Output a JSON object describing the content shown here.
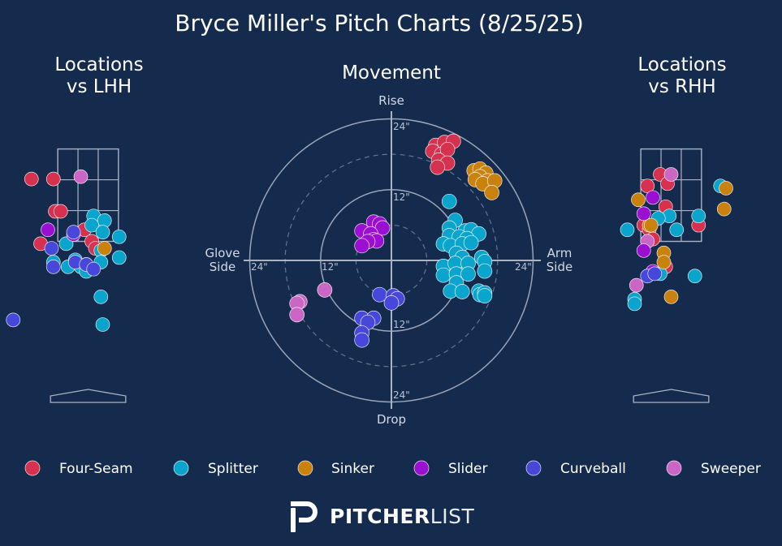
{
  "title": "Bryce Miller's Pitch Charts (8/25/25)",
  "colors": {
    "background": "#152b4d",
    "grid": "#aab3c4",
    "Four-Seam": "#d6324f",
    "Splitter": "#0aa5cc",
    "Sinker": "#c9820d",
    "Slider": "#9a0fd1",
    "Curveball": "#4747dc",
    "Sweeper": "#cc66c4"
  },
  "pitch_types": [
    "Four-Seam",
    "Splitter",
    "Sinker",
    "Slider",
    "Curveball",
    "Sweeper"
  ],
  "brand": {
    "bold": "PITCHER",
    "light": "LIST",
    "logo": "pitcherlist-p-icon"
  },
  "chart_data": [
    {
      "type": "scatter",
      "title": "Locations\nvs LHH",
      "title_lines": [
        "Locations",
        "vs LHH"
      ],
      "xlim": [
        -2.1,
        2.3
      ],
      "ylim": [
        -1.3,
        3.3
      ],
      "strike_zone": {
        "x": [
          -0.83,
          0.83
        ],
        "z": [
          1.5,
          3.5
        ]
      },
      "points": [
        {
          "pitch": "Four-Seam",
          "x": -1.55,
          "y": 2.85
        },
        {
          "pitch": "Four-Seam",
          "x": -0.95,
          "y": 2.85
        },
        {
          "pitch": "Four-Seam",
          "x": -0.9,
          "y": 2.15
        },
        {
          "pitch": "Four-Seam",
          "x": -0.75,
          "y": 2.15
        },
        {
          "pitch": "Four-Seam",
          "x": -0.1,
          "y": 1.75
        },
        {
          "pitch": "Four-Seam",
          "x": -1.3,
          "y": 1.45
        },
        {
          "pitch": "Four-Seam",
          "x": 0.1,
          "y": 1.5
        },
        {
          "pitch": "Four-Seam",
          "x": 0.2,
          "y": 1.35
        },
        {
          "pitch": "Sweeper",
          "x": -0.2,
          "y": 2.9
        },
        {
          "pitch": "Splitter",
          "x": 0.15,
          "y": 2.05
        },
        {
          "pitch": "Splitter",
          "x": 0.45,
          "y": 1.95
        },
        {
          "pitch": "Splitter",
          "x": 0.1,
          "y": 1.85
        },
        {
          "pitch": "Splitter",
          "x": 0.4,
          "y": 1.7
        },
        {
          "pitch": "Splitter",
          "x": 0.85,
          "y": 1.6
        },
        {
          "pitch": "Splitter",
          "x": -0.6,
          "y": 1.45
        },
        {
          "pitch": "Splitter",
          "x": 0.35,
          "y": 1.3
        },
        {
          "pitch": "Splitter",
          "x": 0.85,
          "y": 1.15
        },
        {
          "pitch": "Splitter",
          "x": -0.95,
          "y": 1.05
        },
        {
          "pitch": "Splitter",
          "x": -0.35,
          "y": 1.1
        },
        {
          "pitch": "Splitter",
          "x": -0.55,
          "y": 0.95
        },
        {
          "pitch": "Splitter",
          "x": -0.2,
          "y": 0.95
        },
        {
          "pitch": "Splitter",
          "x": -0.05,
          "y": 1.0
        },
        {
          "pitch": "Splitter",
          "x": 0.35,
          "y": 1.05
        },
        {
          "pitch": "Splitter",
          "x": -0.05,
          "y": 0.85
        },
        {
          "pitch": "Splitter",
          "x": 0.35,
          "y": 0.3
        },
        {
          "pitch": "Splitter",
          "x": 0.4,
          "y": -0.3
        },
        {
          "pitch": "Sinker",
          "x": 0.45,
          "y": 1.35
        },
        {
          "pitch": "Slider",
          "x": -1.1,
          "y": 1.75
        },
        {
          "pitch": "Slider",
          "x": -0.4,
          "y": 1.65
        },
        {
          "pitch": "Curveball",
          "x": -0.4,
          "y": 1.7
        },
        {
          "pitch": "Curveball",
          "x": -1.0,
          "y": 1.35
        },
        {
          "pitch": "Curveball",
          "x": -0.35,
          "y": 1.05
        },
        {
          "pitch": "Curveball",
          "x": -0.05,
          "y": 1.0
        },
        {
          "pitch": "Curveball",
          "x": -0.95,
          "y": 0.95
        },
        {
          "pitch": "Curveball",
          "x": 0.15,
          "y": 0.9
        },
        {
          "pitch": "Curveball",
          "x": -2.05,
          "y": -0.2
        }
      ]
    },
    {
      "type": "scatter",
      "title": "Movement",
      "axis_labels": {
        "top": "Rise",
        "bottom": "Drop",
        "left": "Glove\nSide",
        "right": "Arm\nSide"
      },
      "axis_labels_lines": {
        "top": [
          "Rise"
        ],
        "bottom": [
          "Drop"
        ],
        "left": [
          "Glove",
          "Side"
        ],
        "right": [
          "Arm",
          "Side"
        ]
      },
      "ring_labels": {
        "r12": "12\"",
        "r24": "24\""
      },
      "rings_solid": [
        12,
        24
      ],
      "rings_dashed": [
        6,
        18
      ],
      "lim": [
        -25,
        25
      ],
      "points": [
        {
          "pitch": "Four-Seam",
          "x": 7.5,
          "y": 19.5
        },
        {
          "pitch": "Four-Seam",
          "x": 9.0,
          "y": 20.0
        },
        {
          "pitch": "Four-Seam",
          "x": 10.5,
          "y": 20.2
        },
        {
          "pitch": "Four-Seam",
          "x": 7.0,
          "y": 18.5
        },
        {
          "pitch": "Four-Seam",
          "x": 8.5,
          "y": 18.0
        },
        {
          "pitch": "Four-Seam",
          "x": 9.5,
          "y": 18.8
        },
        {
          "pitch": "Four-Seam",
          "x": 8.0,
          "y": 17.0
        },
        {
          "pitch": "Four-Seam",
          "x": 9.5,
          "y": 16.5
        },
        {
          "pitch": "Four-Seam",
          "x": 7.8,
          "y": 15.8
        },
        {
          "pitch": "Sinker",
          "x": 14.0,
          "y": 15.2
        },
        {
          "pitch": "Sinker",
          "x": 15.0,
          "y": 15.5
        },
        {
          "pitch": "Sinker",
          "x": 16.0,
          "y": 14.8
        },
        {
          "pitch": "Sinker",
          "x": 15.0,
          "y": 14.2
        },
        {
          "pitch": "Sinker",
          "x": 14.2,
          "y": 13.7
        },
        {
          "pitch": "Sinker",
          "x": 16.3,
          "y": 13.5
        },
        {
          "pitch": "Sinker",
          "x": 15.5,
          "y": 13.0
        },
        {
          "pitch": "Sinker",
          "x": 17.5,
          "y": 13.5
        },
        {
          "pitch": "Sinker",
          "x": 17.0,
          "y": 11.5
        },
        {
          "pitch": "Splitter",
          "x": 9.8,
          "y": 10.0
        },
        {
          "pitch": "Splitter",
          "x": 10.8,
          "y": 6.8
        },
        {
          "pitch": "Splitter",
          "x": 9.8,
          "y": 5.5
        },
        {
          "pitch": "Splitter",
          "x": 12.5,
          "y": 5.0
        },
        {
          "pitch": "Splitter",
          "x": 13.5,
          "y": 5.2
        },
        {
          "pitch": "Splitter",
          "x": 14.8,
          "y": 4.5
        },
        {
          "pitch": "Splitter",
          "x": 9.8,
          "y": 4.2
        },
        {
          "pitch": "Splitter",
          "x": 11.5,
          "y": 4.0
        },
        {
          "pitch": "Splitter",
          "x": 12.8,
          "y": 3.7
        },
        {
          "pitch": "Splitter",
          "x": 8.8,
          "y": 2.8
        },
        {
          "pitch": "Splitter",
          "x": 10.0,
          "y": 2.5
        },
        {
          "pitch": "Splitter",
          "x": 12.0,
          "y": 2.8
        },
        {
          "pitch": "Splitter",
          "x": 13.5,
          "y": 3.0
        },
        {
          "pitch": "Splitter",
          "x": 11.0,
          "y": 1.2
        },
        {
          "pitch": "Splitter",
          "x": 12.0,
          "y": 0.5
        },
        {
          "pitch": "Splitter",
          "x": 15.3,
          "y": 0.5
        },
        {
          "pitch": "Splitter",
          "x": 8.8,
          "y": -1.0
        },
        {
          "pitch": "Splitter",
          "x": 10.8,
          "y": -0.5
        },
        {
          "pitch": "Splitter",
          "x": 13.0,
          "y": -0.5
        },
        {
          "pitch": "Splitter",
          "x": 15.8,
          "y": -0.2
        },
        {
          "pitch": "Splitter",
          "x": 15.8,
          "y": -1.8
        },
        {
          "pitch": "Splitter",
          "x": 8.8,
          "y": -2.5
        },
        {
          "pitch": "Splitter",
          "x": 11.0,
          "y": -2.3
        },
        {
          "pitch": "Splitter",
          "x": 13.0,
          "y": -2.3
        },
        {
          "pitch": "Splitter",
          "x": 11.0,
          "y": -3.8
        },
        {
          "pitch": "Splitter",
          "x": 10.0,
          "y": -5.2
        },
        {
          "pitch": "Splitter",
          "x": 12.0,
          "y": -5.3
        },
        {
          "pitch": "Splitter",
          "x": 14.8,
          "y": -5.2
        },
        {
          "pitch": "Splitter",
          "x": 15.0,
          "y": -5.8
        },
        {
          "pitch": "Splitter",
          "x": 15.8,
          "y": -5.5
        },
        {
          "pitch": "Splitter",
          "x": 15.8,
          "y": -6.0
        },
        {
          "pitch": "Slider",
          "x": -3.0,
          "y": 6.5
        },
        {
          "pitch": "Slider",
          "x": -2.0,
          "y": 6.2
        },
        {
          "pitch": "Slider",
          "x": -1.5,
          "y": 5.5
        },
        {
          "pitch": "Slider",
          "x": -5.0,
          "y": 5.0
        },
        {
          "pitch": "Slider",
          "x": -3.5,
          "y": 4.5
        },
        {
          "pitch": "Slider",
          "x": -3.0,
          "y": 3.5
        },
        {
          "pitch": "Slider",
          "x": -2.5,
          "y": 3.3
        },
        {
          "pitch": "Slider",
          "x": -4.0,
          "y": 3.2
        },
        {
          "pitch": "Slider",
          "x": -5.0,
          "y": 2.5
        },
        {
          "pitch": "Curveball",
          "x": -2.0,
          "y": -5.8
        },
        {
          "pitch": "Curveball",
          "x": 0.3,
          "y": -6.0
        },
        {
          "pitch": "Curveball",
          "x": 1.0,
          "y": -6.5
        },
        {
          "pitch": "Curveball",
          "x": 0.0,
          "y": -7.2
        },
        {
          "pitch": "Curveball",
          "x": -5.0,
          "y": -9.8
        },
        {
          "pitch": "Curveball",
          "x": -3.0,
          "y": -9.8
        },
        {
          "pitch": "Curveball",
          "x": -4.0,
          "y": -10.5
        },
        {
          "pitch": "Curveball",
          "x": -5.0,
          "y": -12.3
        },
        {
          "pitch": "Curveball",
          "x": -5.0,
          "y": -13.5
        },
        {
          "pitch": "Sweeper",
          "x": -11.3,
          "y": -5.0
        },
        {
          "pitch": "Sweeper",
          "x": -15.5,
          "y": -7.0
        },
        {
          "pitch": "Sweeper",
          "x": -16.0,
          "y": -7.3
        },
        {
          "pitch": "Sweeper",
          "x": -16.0,
          "y": -9.2
        }
      ]
    },
    {
      "type": "scatter",
      "title": "Locations\nvs RHH",
      "title_lines": [
        "Locations",
        "vs RHH"
      ],
      "xlim": [
        -2.1,
        2.3
      ],
      "ylim": [
        -1.3,
        3.3
      ],
      "strike_zone": {
        "x": [
          -0.83,
          0.83
        ],
        "z": [
          1.5,
          3.5
        ]
      },
      "points": [
        {
          "pitch": "Four-Seam",
          "x": -0.65,
          "y": 2.7
        },
        {
          "pitch": "Four-Seam",
          "x": -0.3,
          "y": 2.95
        },
        {
          "pitch": "Four-Seam",
          "x": -0.1,
          "y": 2.75
        },
        {
          "pitch": "Four-Seam",
          "x": -0.15,
          "y": 2.25
        },
        {
          "pitch": "Four-Seam",
          "x": -0.75,
          "y": 1.85
        },
        {
          "pitch": "Four-Seam",
          "x": -0.6,
          "y": 1.75
        },
        {
          "pitch": "Four-Seam",
          "x": -0.5,
          "y": 1.55
        },
        {
          "pitch": "Four-Seam",
          "x": 0.75,
          "y": 1.85
        },
        {
          "pitch": "Four-Seam",
          "x": -0.15,
          "y": 0.95
        },
        {
          "pitch": "Sweeper",
          "x": 0.0,
          "y": 2.95
        },
        {
          "pitch": "Sweeper",
          "x": -0.65,
          "y": 1.5
        },
        {
          "pitch": "Sweeper",
          "x": -0.95,
          "y": 0.55
        },
        {
          "pitch": "Splitter",
          "x": 1.35,
          "y": 2.7
        },
        {
          "pitch": "Splitter",
          "x": -0.05,
          "y": 2.05
        },
        {
          "pitch": "Splitter",
          "x": -0.35,
          "y": 2.0
        },
        {
          "pitch": "Splitter",
          "x": 0.75,
          "y": 2.05
        },
        {
          "pitch": "Splitter",
          "x": -1.2,
          "y": 1.75
        },
        {
          "pitch": "Splitter",
          "x": 0.15,
          "y": 1.75
        },
        {
          "pitch": "Splitter",
          "x": -0.3,
          "y": 0.8
        },
        {
          "pitch": "Splitter",
          "x": 0.65,
          "y": 0.75
        },
        {
          "pitch": "Splitter",
          "x": -1.0,
          "y": 0.25
        },
        {
          "pitch": "Splitter",
          "x": -1.0,
          "y": 0.15
        },
        {
          "pitch": "Sinker",
          "x": 1.5,
          "y": 2.65
        },
        {
          "pitch": "Sinker",
          "x": -0.9,
          "y": 2.4
        },
        {
          "pitch": "Sinker",
          "x": 1.45,
          "y": 2.2
        },
        {
          "pitch": "Sinker",
          "x": -0.6,
          "y": 1.85
        },
        {
          "pitch": "Sinker",
          "x": -0.55,
          "y": 1.85
        },
        {
          "pitch": "Sinker",
          "x": -0.2,
          "y": 1.25
        },
        {
          "pitch": "Sinker",
          "x": -0.2,
          "y": 1.05
        },
        {
          "pitch": "Sinker",
          "x": 0.0,
          "y": 0.3
        },
        {
          "pitch": "Slider",
          "x": -0.5,
          "y": 2.45
        },
        {
          "pitch": "Slider",
          "x": -0.75,
          "y": 2.1
        },
        {
          "pitch": "Slider",
          "x": -0.75,
          "y": 1.3
        },
        {
          "pitch": "Slider",
          "x": -0.5,
          "y": 0.85
        },
        {
          "pitch": "Curveball",
          "x": -0.65,
          "y": 0.75
        },
        {
          "pitch": "Curveball",
          "x": -0.45,
          "y": 0.8
        }
      ]
    }
  ]
}
